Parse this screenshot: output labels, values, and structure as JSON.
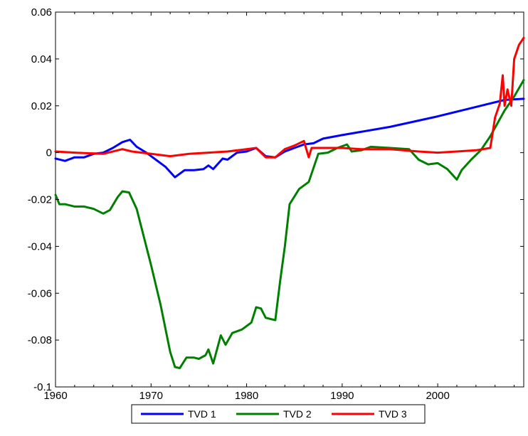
{
  "chart_data": {
    "type": "line",
    "title": "",
    "xlabel": "",
    "ylabel": "",
    "xlim": [
      1960,
      2009
    ],
    "ylim": [
      -0.1,
      0.06
    ],
    "x_ticks": [
      1960,
      1970,
      1980,
      1990,
      2000
    ],
    "x_tick_labels": [
      "1960",
      "1970",
      "1980",
      "1990",
      "2000"
    ],
    "y_ticks": [
      -0.1,
      -0.08,
      -0.06,
      -0.04,
      -0.02,
      0,
      0.02,
      0.04,
      0.06
    ],
    "y_tick_labels": [
      "-0.1",
      "-0.08",
      "-0.06",
      "-0.04",
      "-0.02",
      "0",
      "0.02",
      "0.04",
      "0.06"
    ],
    "grid": false,
    "legend_position": "bottom",
    "series": [
      {
        "name": "TVD 1",
        "color": "#0000ff",
        "points": [
          [
            1960,
            -0.0025
          ],
          [
            1961,
            -0.0035
          ],
          [
            1962,
            -0.002
          ],
          [
            1963,
            -0.002
          ],
          [
            1964,
            -0.0005
          ],
          [
            1965,
            0.0
          ],
          [
            1966,
            0.002
          ],
          [
            1967,
            0.0045
          ],
          [
            1967.8,
            0.0055
          ],
          [
            1968.5,
            0.0025
          ],
          [
            1969.5,
            0.0
          ],
          [
            1970.5,
            -0.003
          ],
          [
            1971.5,
            -0.006
          ],
          [
            1972.5,
            -0.0105
          ],
          [
            1973.5,
            -0.0075
          ],
          [
            1974.5,
            -0.0075
          ],
          [
            1975.5,
            -0.007
          ],
          [
            1976,
            -0.0055
          ],
          [
            1976.5,
            -0.007
          ],
          [
            1977.5,
            -0.0025
          ],
          [
            1978,
            -0.003
          ],
          [
            1979,
            0.0
          ],
          [
            1980,
            0.0005
          ],
          [
            1981,
            0.002
          ],
          [
            1982,
            -0.0015
          ],
          [
            1983,
            -0.002
          ],
          [
            1984,
            0.0005
          ],
          [
            1985,
            0.002
          ],
          [
            1986,
            0.0035
          ],
          [
            1987,
            0.004
          ],
          [
            1988,
            0.006
          ],
          [
            1990,
            0.0075
          ],
          [
            1995,
            0.011
          ],
          [
            2000,
            0.0155
          ],
          [
            2003,
            0.0185
          ],
          [
            2005,
            0.0205
          ],
          [
            2007,
            0.0225
          ],
          [
            2009,
            0.023
          ]
        ]
      },
      {
        "name": "TVD 2",
        "color": "#008000",
        "points": [
          [
            1960,
            -0.018
          ],
          [
            1960.4,
            -0.022
          ],
          [
            1961,
            -0.022
          ],
          [
            1962,
            -0.023
          ],
          [
            1963,
            -0.023
          ],
          [
            1964,
            -0.024
          ],
          [
            1965,
            -0.026
          ],
          [
            1965.7,
            -0.0245
          ],
          [
            1966.5,
            -0.019
          ],
          [
            1967,
            -0.0165
          ],
          [
            1967.7,
            -0.017
          ],
          [
            1968.5,
            -0.024
          ],
          [
            1970,
            -0.048
          ],
          [
            1971,
            -0.065
          ],
          [
            1972,
            -0.085
          ],
          [
            1972.5,
            -0.0915
          ],
          [
            1973,
            -0.092
          ],
          [
            1973.7,
            -0.0875
          ],
          [
            1974.5,
            -0.0875
          ],
          [
            1975,
            -0.088
          ],
          [
            1975.7,
            -0.0865
          ],
          [
            1976,
            -0.084
          ],
          [
            1976.5,
            -0.09
          ],
          [
            1977.3,
            -0.078
          ],
          [
            1977.8,
            -0.082
          ],
          [
            1978.5,
            -0.077
          ],
          [
            1979.5,
            -0.0755
          ],
          [
            1980.5,
            -0.0725
          ],
          [
            1981,
            -0.066
          ],
          [
            1981.5,
            -0.0665
          ],
          [
            1982,
            -0.0705
          ],
          [
            1983,
            -0.0715
          ],
          [
            1983.5,
            -0.055
          ],
          [
            1984,
            -0.04
          ],
          [
            1984.5,
            -0.022
          ],
          [
            1985.5,
            -0.0155
          ],
          [
            1986.5,
            -0.0125
          ],
          [
            1987.5,
            -0.0005
          ],
          [
            1988.5,
            0.0
          ],
          [
            1989.5,
            0.002
          ],
          [
            1990.5,
            0.0035
          ],
          [
            1991,
            0.0005
          ],
          [
            1992,
            0.001
          ],
          [
            1993,
            0.0025
          ],
          [
            1995,
            0.002
          ],
          [
            1997,
            0.0015
          ],
          [
            1998,
            -0.003
          ],
          [
            1999,
            -0.005
          ],
          [
            2000,
            -0.0045
          ],
          [
            2001,
            -0.007
          ],
          [
            2002,
            -0.0115
          ],
          [
            2002.5,
            -0.0075
          ],
          [
            2003.5,
            -0.003
          ],
          [
            2004.5,
            0.001
          ],
          [
            2005.5,
            0.007
          ],
          [
            2007,
            0.018
          ],
          [
            2008,
            0.024
          ],
          [
            2009,
            0.031
          ]
        ]
      },
      {
        "name": "TVD 3",
        "color": "#ff0000",
        "points": [
          [
            1960,
            0.0005
          ],
          [
            1962,
            0.0
          ],
          [
            1965,
            -0.0005
          ],
          [
            1967,
            0.0015
          ],
          [
            1968,
            0.0005
          ],
          [
            1970,
            -0.0005
          ],
          [
            1972,
            -0.0015
          ],
          [
            1974,
            -0.0005
          ],
          [
            1976,
            0.0
          ],
          [
            1978,
            0.0005
          ],
          [
            1980,
            0.0015
          ],
          [
            1981,
            0.002
          ],
          [
            1982,
            -0.002
          ],
          [
            1983,
            -0.002
          ],
          [
            1984,
            0.0015
          ],
          [
            1985,
            0.003
          ],
          [
            1986,
            0.005
          ],
          [
            1986.5,
            -0.002
          ],
          [
            1986.8,
            0.002
          ],
          [
            1988,
            0.002
          ],
          [
            1990,
            0.002
          ],
          [
            1992,
            0.0015
          ],
          [
            1995,
            0.0015
          ],
          [
            1998,
            0.0005
          ],
          [
            2000,
            0.0
          ],
          [
            2002,
            0.0005
          ],
          [
            2004,
            0.001
          ],
          [
            2005.5,
            0.002
          ],
          [
            2006,
            0.015
          ],
          [
            2006.5,
            0.021
          ],
          [
            2006.8,
            0.033
          ],
          [
            2007,
            0.02
          ],
          [
            2007.3,
            0.027
          ],
          [
            2007.7,
            0.02
          ],
          [
            2008,
            0.04
          ],
          [
            2008.5,
            0.046
          ],
          [
            2009,
            0.049
          ]
        ]
      }
    ]
  }
}
